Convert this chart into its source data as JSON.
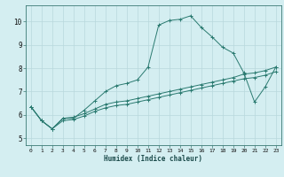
{
  "xlabel": "Humidex (Indice chaleur)",
  "background_color": "#d4eef1",
  "grid_color": "#b8d8dc",
  "line_color": "#2a7a70",
  "xlim": [
    -0.5,
    23.5
  ],
  "ylim": [
    4.7,
    10.7
  ],
  "xticks": [
    0,
    1,
    2,
    3,
    4,
    5,
    6,
    7,
    8,
    9,
    10,
    11,
    12,
    13,
    14,
    15,
    16,
    17,
    18,
    19,
    20,
    21,
    22,
    23
  ],
  "yticks": [
    5,
    6,
    7,
    8,
    9,
    10
  ],
  "line1_x": [
    0,
    1,
    2,
    3,
    4,
    5,
    6,
    7,
    8,
    9,
    10,
    11,
    12,
    13,
    14,
    15,
    16,
    17,
    18,
    19,
    20,
    21,
    22,
    23
  ],
  "line1_y": [
    6.35,
    5.75,
    5.4,
    5.85,
    5.85,
    6.2,
    6.6,
    7.0,
    7.25,
    7.35,
    7.5,
    8.05,
    9.85,
    10.05,
    10.1,
    10.25,
    9.75,
    9.35,
    8.9,
    8.65,
    7.8,
    6.55,
    7.2,
    8.05
  ],
  "line2_x": [
    0,
    1,
    2,
    3,
    4,
    5,
    6,
    7,
    8,
    9,
    10,
    11,
    12,
    13,
    14,
    15,
    16,
    17,
    18,
    19,
    20,
    21,
    22,
    23
  ],
  "line2_y": [
    6.35,
    5.75,
    5.4,
    5.85,
    5.9,
    6.05,
    6.25,
    6.45,
    6.55,
    6.6,
    6.7,
    6.8,
    6.9,
    7.0,
    7.1,
    7.2,
    7.3,
    7.4,
    7.5,
    7.6,
    7.75,
    7.8,
    7.9,
    8.05
  ],
  "line3_x": [
    0,
    1,
    2,
    3,
    4,
    5,
    6,
    7,
    8,
    9,
    10,
    11,
    12,
    13,
    14,
    15,
    16,
    17,
    18,
    19,
    20,
    21,
    22,
    23
  ],
  "line3_y": [
    6.35,
    5.75,
    5.4,
    5.75,
    5.8,
    5.95,
    6.15,
    6.3,
    6.4,
    6.45,
    6.55,
    6.65,
    6.75,
    6.85,
    6.95,
    7.05,
    7.15,
    7.25,
    7.35,
    7.45,
    7.55,
    7.6,
    7.7,
    7.85
  ]
}
